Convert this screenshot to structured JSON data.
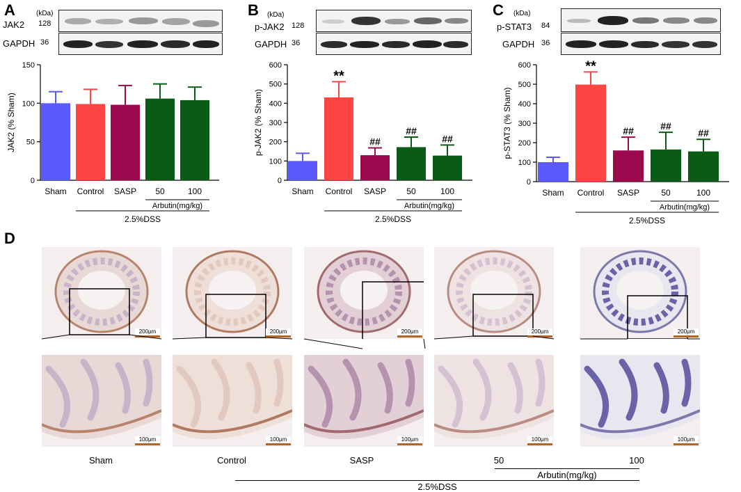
{
  "colors": {
    "sham": "#5a5aff",
    "control": "#ff4444",
    "sasp": "#9b0a4f",
    "arbutin": "#0a5c14",
    "scalebar": "#b5651d"
  },
  "panels": {
    "A": {
      "letter": "A",
      "kda": "(kDa)",
      "protein": "JAK2",
      "protein_kda": "128",
      "loading": "GAPDH",
      "loading_kda": "36"
    },
    "B": {
      "letter": "B",
      "kda": "(kDa)",
      "protein": "p-JAK2",
      "protein_kda": "128",
      "loading": "GAPDH",
      "loading_kda": "36"
    },
    "C": {
      "letter": "C",
      "kda": "(kDa)",
      "protein": "p-STAT3",
      "protein_kda": "84",
      "loading": "GAPDH",
      "loading_kda": "36"
    },
    "D": {
      "letter": "D"
    }
  },
  "chart_data": [
    {
      "type": "bar",
      "categories": [
        "Sham",
        "Control",
        "SASP",
        "50",
        "100"
      ],
      "values": [
        100,
        99,
        98,
        106,
        104
      ],
      "errors": [
        15,
        19,
        25,
        19,
        17
      ],
      "annotations": [
        "",
        "",
        "",
        "",
        ""
      ],
      "ylabel": "JAK2 (% Sham)",
      "ylim": [
        0,
        150
      ],
      "yticks": [
        0,
        50,
        100,
        150
      ],
      "group_label": "2.5%DSS",
      "sub_group_label": "Arbutin(mg/kg)"
    },
    {
      "type": "bar",
      "categories": [
        "Sham",
        "Control",
        "SASP",
        "50",
        "100"
      ],
      "values": [
        100,
        430,
        130,
        172,
        128
      ],
      "errors": [
        40,
        82,
        38,
        52,
        55
      ],
      "annotations": [
        "",
        "**",
        "##",
        "##",
        "##"
      ],
      "ylabel": "p-JAK2 (% Sham)",
      "ylim": [
        0,
        600
      ],
      "yticks": [
        0,
        100,
        200,
        300,
        400,
        500,
        600
      ],
      "group_label": "2.5%DSS",
      "sub_group_label": "Arbutin(mg/kg)"
    },
    {
      "type": "bar",
      "categories": [
        "Sham",
        "Control",
        "SASP",
        "50",
        "100"
      ],
      "values": [
        100,
        498,
        160,
        165,
        155
      ],
      "errors": [
        25,
        65,
        68,
        88,
        62
      ],
      "annotations": [
        "",
        "**",
        "##",
        "##",
        "##"
      ],
      "ylabel": "p-STAT3 (% Sham)",
      "ylim": [
        0,
        600
      ],
      "yticks": [
        0,
        100,
        200,
        300,
        400,
        500,
        600
      ],
      "group_label": "2.5%DSS",
      "sub_group_label": "Arbutin(mg/kg)"
    }
  ],
  "histology": {
    "scale_top": "200μm",
    "scale_bottom": "100μm",
    "labels": [
      "Sham",
      "Control",
      "SASP",
      "50",
      "100"
    ],
    "sub_group_label": "Arbutin(mg/kg)",
    "group_label": "2.5%DSS"
  }
}
